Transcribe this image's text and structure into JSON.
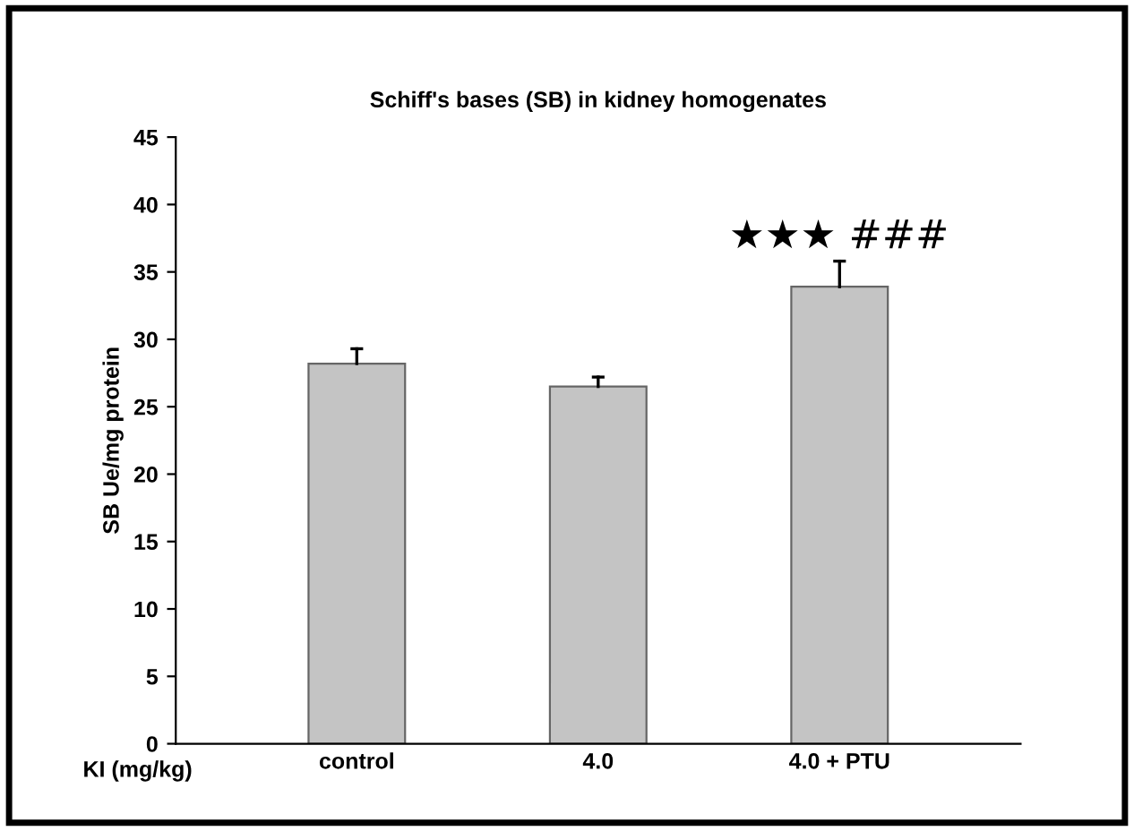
{
  "chart_data": {
    "type": "bar",
    "title": "Schiff's bases (SB) in kidney homogenates",
    "xlabel": "KI (mg/kg)",
    "ylabel": "SB Ue/mg protein",
    "categories": [
      "control",
      "4.0",
      "4.0 + PTU"
    ],
    "values": [
      28.2,
      26.5,
      33.9
    ],
    "errors": [
      [
        28.2,
        29.3
      ],
      [
        26.5,
        27.2
      ],
      [
        33.9,
        35.8
      ]
    ],
    "color": "#c4c4c4",
    "ylim": [
      0,
      45
    ],
    "yticks": [
      0,
      5,
      10,
      15,
      20,
      25,
      30,
      35,
      40,
      45
    ],
    "grid": false,
    "legend": false,
    "annotations": [
      "★★★ ###"
    ]
  }
}
